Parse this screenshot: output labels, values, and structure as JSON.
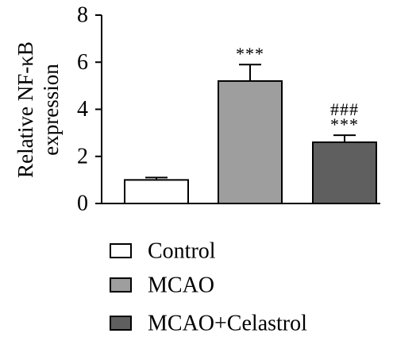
{
  "chart_data": {
    "type": "bar",
    "categories": [
      "Control",
      "MCAO",
      "MCAO+Celastrol"
    ],
    "values": [
      1.0,
      5.2,
      2.6
    ],
    "errors": [
      0.1,
      0.7,
      0.3
    ],
    "colors": [
      "#ffffff",
      "#9e9e9e",
      "#5f5f5f"
    ],
    "annotations": [
      [],
      [
        "***"
      ],
      [
        "***",
        "###"
      ]
    ],
    "ylabel_lines": [
      "Relative NF-κB",
      "expression"
    ],
    "ylim": [
      0,
      8
    ],
    "yticks": [
      0,
      2,
      4,
      6,
      8
    ],
    "grid": false,
    "legend": {
      "placement": "bottom",
      "items": [
        "Control",
        "MCAO",
        "MCAO+Celastrol"
      ]
    }
  }
}
